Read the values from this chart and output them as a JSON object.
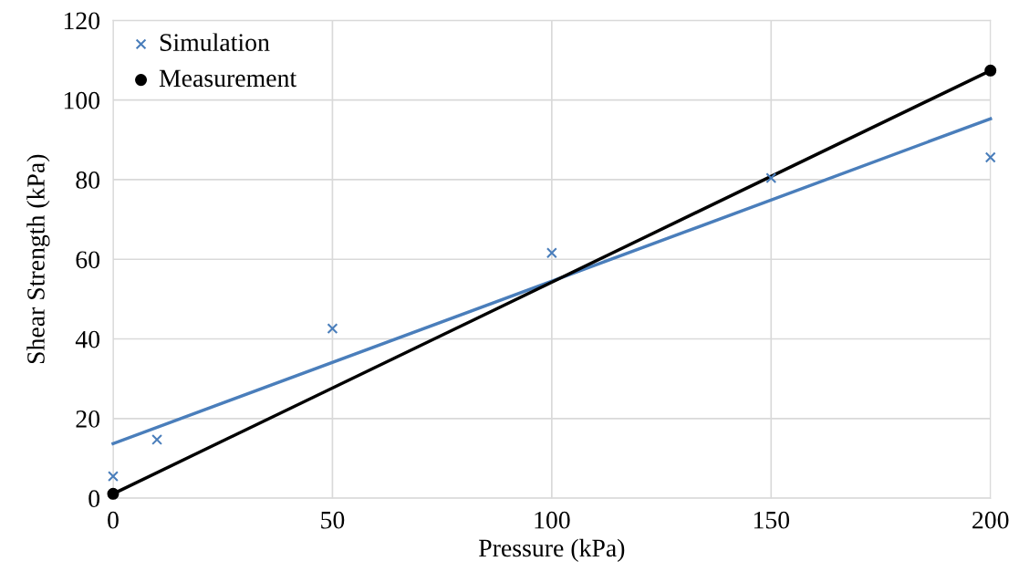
{
  "chart_data": {
    "type": "scatter",
    "xlabel": "Pressure (kPa)",
    "ylabel": "Shear Strength (kPa)",
    "xlim": [
      0,
      200
    ],
    "ylim": [
      0,
      120
    ],
    "xticks": [
      0,
      50,
      100,
      150,
      200
    ],
    "yticks": [
      0,
      20,
      40,
      60,
      80,
      100,
      120
    ],
    "grid": true,
    "legend": "top left",
    "series": [
      {
        "type": "line",
        "color": "#4a7ebb",
        "x": [
          0,
          200
        ],
        "values": [
          13.7,
          95.3
        ],
        "marker": "none",
        "line_style": "solid"
      },
      {
        "type": "line",
        "color": "#000000",
        "x": [
          0,
          200
        ],
        "values": [
          1.1,
          107.4
        ],
        "marker": "none",
        "line_style": "solid"
      },
      {
        "name": "Simulation",
        "color": "#4a7ebb",
        "marker": "cross",
        "x": [
          0,
          10,
          50,
          100,
          150,
          200
        ],
        "values": [
          5.5,
          14.7,
          42.6,
          61.6,
          80.4,
          85.6
        ]
      },
      {
        "name": "Measurement",
        "color": "#000000",
        "marker": "circle",
        "x": [
          0,
          200
        ],
        "values": [
          1.1,
          107.4
        ]
      }
    ]
  }
}
